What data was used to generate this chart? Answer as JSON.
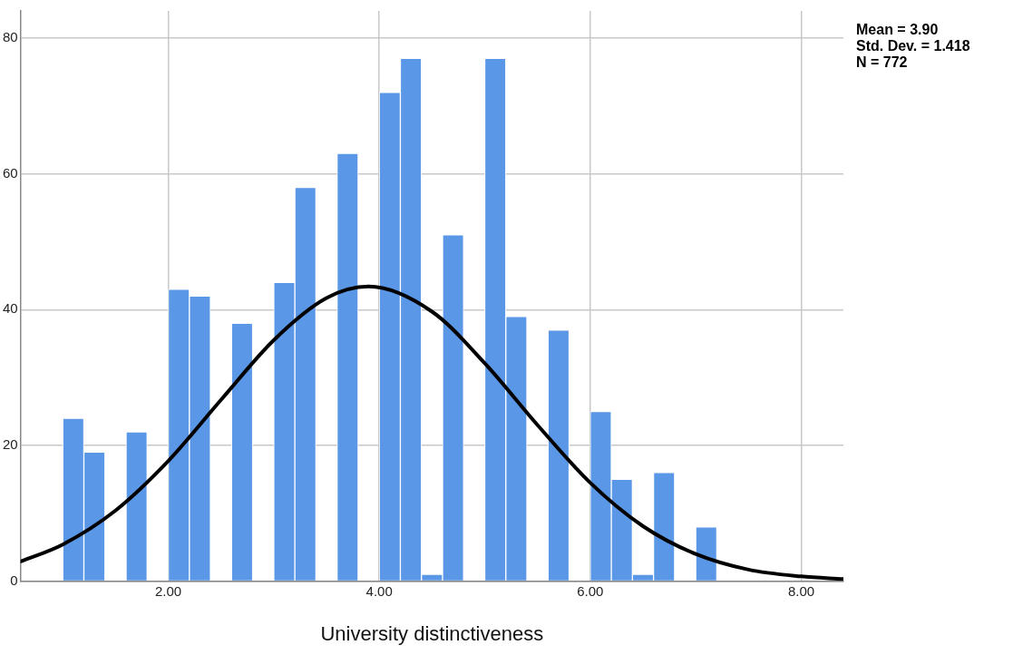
{
  "chart_data": {
    "type": "histogram",
    "xlabel": "University distinctiveness",
    "annotations": [
      "Mean = 3.90",
      "Std. Dev. = 1.418",
      "N = 772"
    ],
    "bins": [
      1.0,
      1.2,
      1.4,
      1.6,
      1.8,
      2.0,
      2.2,
      2.4,
      2.6,
      2.8,
      3.0,
      3.2,
      3.4,
      3.6,
      3.8,
      4.0,
      4.2,
      4.4,
      4.6,
      4.8,
      5.0,
      5.2,
      5.4,
      5.6,
      5.8,
      6.0,
      6.2,
      6.4,
      6.6,
      6.8,
      7.0,
      7.2
    ],
    "series": [
      {
        "color": "#5a97e6",
        "values": [
          24,
          19,
          0,
          22,
          0,
          43,
          42,
          0,
          38,
          0,
          44,
          58,
          0,
          63,
          0,
          72,
          77,
          1,
          51,
          0,
          77,
          39,
          0,
          37,
          0,
          25,
          15,
          1,
          16,
          0,
          8
        ]
      },
      {
        "type": "line",
        "color": "#000000",
        "x": [
          0.6,
          1.0,
          1.5,
          2.0,
          2.5,
          3.0,
          3.5,
          3.9,
          4.5,
          5.0,
          5.5,
          6.0,
          6.5,
          7.0,
          7.5,
          8.0,
          8.4
        ],
        "values": [
          2.9,
          5.4,
          10.4,
          17.7,
          26.7,
          35.5,
          41.7,
          43.4,
          39.7,
          32.1,
          23.0,
          14.5,
          8.1,
          4.0,
          1.7,
          0.7,
          0.3
        ]
      }
    ],
    "xlim": [
      0.6,
      8.4
    ],
    "xticks": [
      {
        "value": 2,
        "label": "2.00"
      },
      {
        "value": 4,
        "label": "4.00"
      },
      {
        "value": 6,
        "label": "6.00"
      },
      {
        "value": 8,
        "label": "8.00"
      }
    ],
    "ylim": [
      0,
      84
    ],
    "yticks": [
      0,
      20,
      40,
      60,
      80
    ],
    "grid": true,
    "marker": "none",
    "line_style": "solid"
  }
}
